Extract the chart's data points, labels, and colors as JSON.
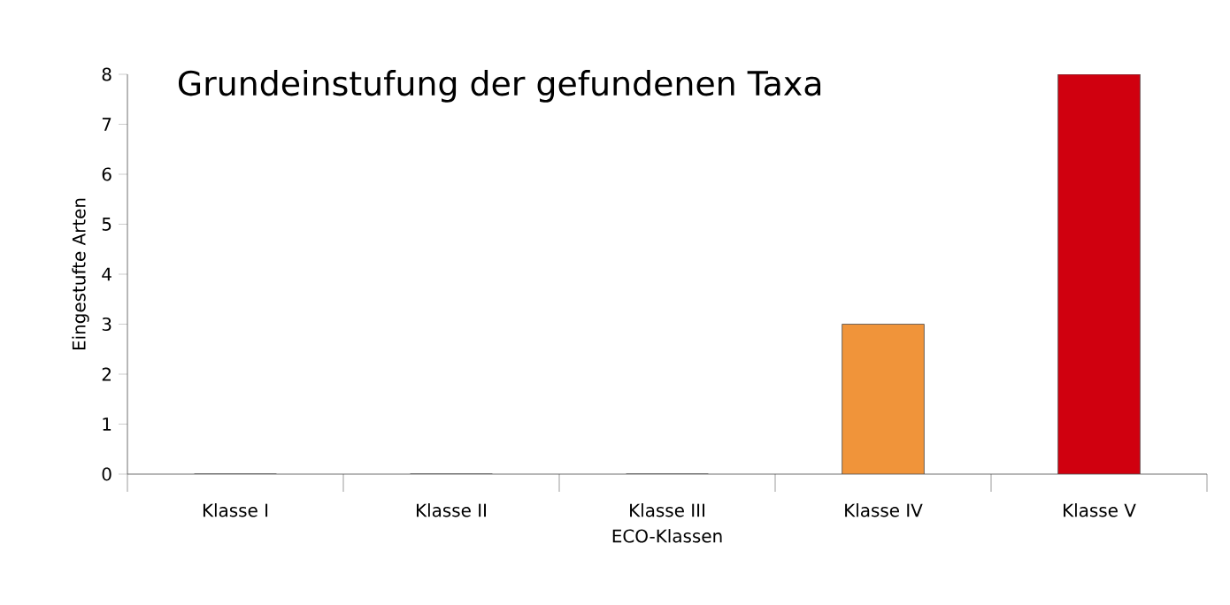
{
  "chart_data": {
    "type": "bar",
    "title": "Grundeinstufung der gefundenen Taxa",
    "xlabel": "ECO-Klassen",
    "ylabel": "Eingestufte Arten",
    "categories": [
      "Klasse I",
      "Klasse II",
      "Klasse III",
      "Klasse IV",
      "Klasse V"
    ],
    "values": [
      0,
      0,
      0,
      3,
      8
    ],
    "colors": [
      "#0066cc",
      "#00a650",
      "#f5e600",
      "#f0943a",
      "#d0000f"
    ],
    "ylim": [
      0,
      8
    ],
    "yticks": [
      0,
      1,
      2,
      3,
      4,
      5,
      6,
      7,
      8
    ],
    "grid": false
  }
}
